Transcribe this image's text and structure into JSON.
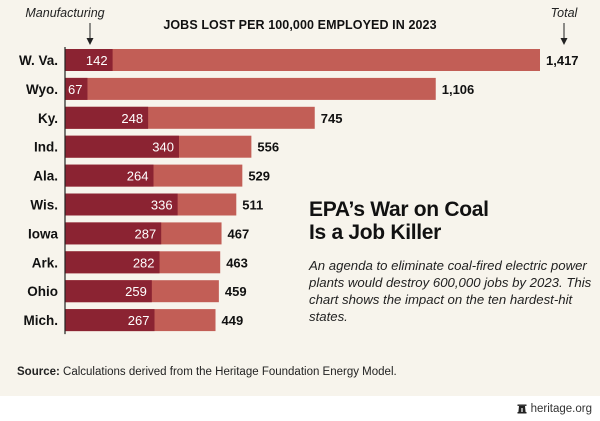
{
  "chart_data": {
    "type": "bar",
    "orientation": "horizontal",
    "stacked_overlay": true,
    "title": "JOBS LOST PER 100,000 EMPLOYED IN 2023",
    "categories": [
      "W. Va.",
      "Wyo.",
      "Ky.",
      "Ind.",
      "Ala.",
      "Wis.",
      "Iowa",
      "Ark.",
      "Ohio",
      "Mich."
    ],
    "series": [
      {
        "name": "Manufacturing",
        "color": "#8b2332",
        "values": [
          142,
          67,
          248,
          340,
          264,
          336,
          287,
          282,
          259,
          267
        ]
      },
      {
        "name": "Total",
        "color": "#c25e56",
        "values": [
          1417,
          1106,
          745,
          556,
          529,
          511,
          467,
          463,
          459,
          449
        ]
      }
    ],
    "annotations": {
      "manufacturing_label": "Manufacturing",
      "total_label": "Total"
    },
    "xlim": [
      0,
      1417
    ],
    "grid": false
  },
  "headline": {
    "line1": "EPA’s War on Coal",
    "line2": "Is a Job Killer"
  },
  "description": "An agenda to eliminate coal-fired electric power plants would destroy 600,000 jobs by 2023. This chart shows the impact on the ten hardest-hit states.",
  "source": {
    "label": "Source:",
    "text": " Calculations derived from the Heritage Foundation Energy Model."
  },
  "brand": {
    "icon": "liberty-bell-icon",
    "text": "heritage.org"
  }
}
